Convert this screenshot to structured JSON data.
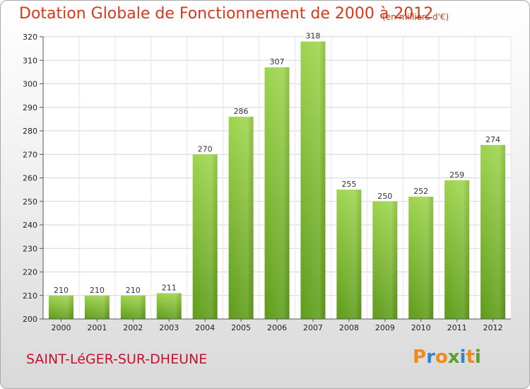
{
  "title": "Dotation Globale de Fonctionnement de 2000 à 2012",
  "subtitle": "(en milliers d'€)",
  "town": "SAINT-LéGER-SUR-DHEUNE",
  "logo": "Proxiti",
  "colors": {
    "title": "#d43a1a",
    "bar_top": "#9ed44e",
    "bar_bottom": "#5e9c19",
    "town": "#c8102e"
  },
  "chart_data": {
    "type": "bar",
    "categories": [
      "2000",
      "2001",
      "2002",
      "2003",
      "2004",
      "2005",
      "2006",
      "2007",
      "2008",
      "2009",
      "2010",
      "2011",
      "2012"
    ],
    "values": [
      210,
      210,
      210,
      211,
      270,
      286,
      307,
      318,
      255,
      250,
      252,
      259,
      274
    ],
    "title": "Dotation Globale de Fonctionnement de 2000 à 2012",
    "ylabel": "",
    "xlabel": "",
    "ylim": [
      200,
      320
    ],
    "yticks": [
      200,
      210,
      220,
      230,
      240,
      250,
      260,
      270,
      280,
      290,
      300,
      310,
      320
    ],
    "grid": true,
    "data_labels": true
  }
}
